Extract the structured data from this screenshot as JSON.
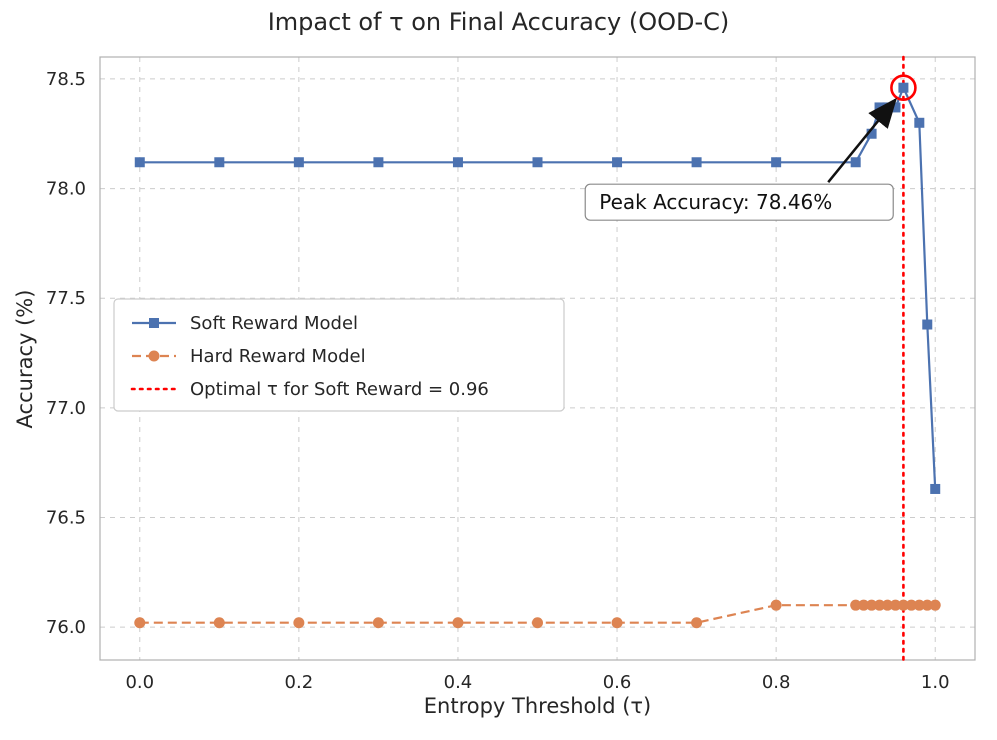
{
  "chart_data": {
    "type": "line",
    "title": "Impact of τ on Final Accuracy (OOD-C)",
    "xlabel": "Entropy Threshold (τ)",
    "ylabel": "Accuracy (%)",
    "xlim": [
      -0.05,
      1.05
    ],
    "ylim": [
      75.85,
      78.6
    ],
    "xticks": [
      0.0,
      0.2,
      0.4,
      0.6,
      0.8,
      1.0
    ],
    "yticks": [
      76.0,
      76.5,
      77.0,
      77.5,
      78.0,
      78.5
    ],
    "grid": true,
    "grid_style": "dashed",
    "grid_color": "#cccccc",
    "series": [
      {
        "name": "Soft Reward Model",
        "color": "#4C72B0",
        "line": "solid",
        "marker": "square",
        "points": [
          [
            0.0,
            78.12
          ],
          [
            0.1,
            78.12
          ],
          [
            0.2,
            78.12
          ],
          [
            0.3,
            78.12
          ],
          [
            0.4,
            78.12
          ],
          [
            0.5,
            78.12
          ],
          [
            0.6,
            78.12
          ],
          [
            0.7,
            78.12
          ],
          [
            0.8,
            78.12
          ],
          [
            0.9,
            78.12
          ],
          [
            0.92,
            78.25
          ],
          [
            0.93,
            78.37
          ],
          [
            0.94,
            78.37
          ],
          [
            0.95,
            78.37
          ],
          [
            0.96,
            78.46
          ],
          [
            0.98,
            78.3
          ],
          [
            0.99,
            77.38
          ],
          [
            1.0,
            76.63
          ]
        ]
      },
      {
        "name": "Hard Reward Model",
        "color": "#DD8452",
        "line": "dashed",
        "marker": "circle",
        "points": [
          [
            0.0,
            76.02
          ],
          [
            0.1,
            76.02
          ],
          [
            0.2,
            76.02
          ],
          [
            0.3,
            76.02
          ],
          [
            0.4,
            76.02
          ],
          [
            0.5,
            76.02
          ],
          [
            0.6,
            76.02
          ],
          [
            0.7,
            76.02
          ],
          [
            0.8,
            76.1
          ],
          [
            0.9,
            76.1
          ],
          [
            0.91,
            76.1
          ],
          [
            0.92,
            76.1
          ],
          [
            0.93,
            76.1
          ],
          [
            0.94,
            76.1
          ],
          [
            0.95,
            76.1
          ],
          [
            0.96,
            76.1
          ],
          [
            0.97,
            76.1
          ],
          [
            0.98,
            76.1
          ],
          [
            0.99,
            76.1
          ],
          [
            1.0,
            76.1
          ]
        ]
      }
    ],
    "vline": {
      "x": 0.96,
      "color": "#FF0000",
      "style": "dotted",
      "label": "Optimal τ for Soft Reward = 0.96"
    },
    "peak_highlight": {
      "point": [
        0.96,
        78.46
      ],
      "color": "#FF0000"
    },
    "annotation": {
      "text": "Peak Accuracy: 78.46%",
      "target_point": [
        0.96,
        78.46
      ],
      "box_position": [
        0.56,
        78.02
      ]
    },
    "legend": {
      "position": "center-left",
      "entries": [
        {
          "label": "Soft Reward Model",
          "color": "#4C72B0",
          "line": "solid",
          "marker": "square"
        },
        {
          "label": "Hard Reward Model",
          "color": "#DD8452",
          "line": "dashed",
          "marker": "circle"
        },
        {
          "label": "Optimal τ for Soft Reward = 0.96",
          "color": "#FF0000",
          "line": "dotted",
          "marker": "none"
        }
      ]
    }
  }
}
